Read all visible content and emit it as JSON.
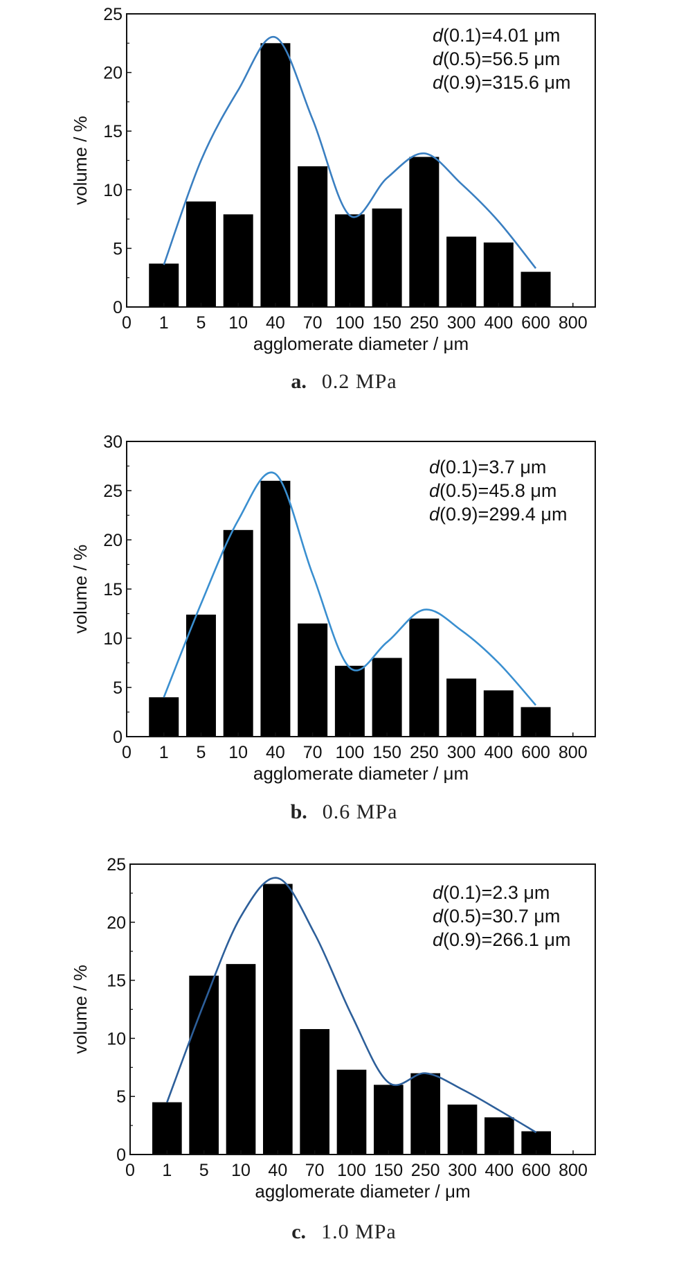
{
  "chart_data": [
    {
      "type": "bar",
      "panel_letter": "a.",
      "caption": "0.2 MPa",
      "xlabel": "agglomerate diameter / μm",
      "ylabel": "volume / %",
      "x_tick_labels": [
        "0",
        "1",
        "5",
        "10",
        "40",
        "70",
        "100",
        "150",
        "250",
        "300",
        "400",
        "600",
        "800"
      ],
      "categories": [
        "1",
        "5",
        "10",
        "40",
        "70",
        "100",
        "150",
        "250",
        "300",
        "400",
        "600"
      ],
      "values": [
        3.7,
        9.0,
        7.9,
        22.5,
        12.0,
        7.9,
        8.4,
        12.8,
        6.0,
        5.5,
        3.0
      ],
      "fit_curve": [
        3.6,
        12.5,
        18.5,
        23.0,
        16.0,
        7.8,
        11.0,
        13.1,
        10.5,
        7.3,
        3.3
      ],
      "ylim": [
        0,
        25
      ],
      "y_ticks": [
        "0",
        "5",
        "10",
        "15",
        "20",
        "25"
      ],
      "annotations": [
        {
          "prefix": "d",
          "text": "(0.1)=4.01 μm"
        },
        {
          "prefix": "d",
          "text": "(0.5)=56.5 μm"
        },
        {
          "prefix": "d",
          "text": "(0.9)=315.6 μm"
        }
      ],
      "bar_color": "#000000",
      "curve_color": "#3a7fc1",
      "grid": false
    },
    {
      "type": "bar",
      "panel_letter": "b.",
      "caption": "0.6 MPa",
      "xlabel": "agglomerate diameter / μm",
      "ylabel": "volume / %",
      "x_tick_labels": [
        "0",
        "1",
        "5",
        "10",
        "40",
        "70",
        "100",
        "150",
        "250",
        "300",
        "400",
        "600",
        "800"
      ],
      "categories": [
        "1",
        "5",
        "10",
        "40",
        "70",
        "100",
        "150",
        "250",
        "300",
        "400",
        "600"
      ],
      "values": [
        4.0,
        12.4,
        21.0,
        26.0,
        11.5,
        7.2,
        8.0,
        12.0,
        5.9,
        4.7,
        3.0
      ],
      "fit_curve": [
        4.0,
        13.5,
        22.0,
        26.7,
        16.5,
        7.0,
        9.6,
        12.9,
        10.8,
        7.5,
        3.2
      ],
      "ylim": [
        0,
        30
      ],
      "y_ticks": [
        "0",
        "5",
        "10",
        "15",
        "20",
        "25",
        "30"
      ],
      "annotations": [
        {
          "prefix": "d",
          "text": "(0.1)=3.7 μm"
        },
        {
          "prefix": "d",
          "text": "(0.5)=45.8 μm"
        },
        {
          "prefix": "d",
          "text": "(0.9)=299.4 μm"
        }
      ],
      "bar_color": "#000000",
      "curve_color": "#3a8fd0",
      "grid": false
    },
    {
      "type": "bar",
      "panel_letter": "c.",
      "caption": "1.0 MPa",
      "xlabel": "agglomerate diameter / μm",
      "ylabel": "volume / %",
      "x_tick_labels": [
        "0",
        "1",
        "5",
        "10",
        "40",
        "70",
        "100",
        "150",
        "250",
        "300",
        "400",
        "600",
        "800"
      ],
      "categories": [
        "1",
        "5",
        "10",
        "40",
        "70",
        "100",
        "150",
        "250",
        "300",
        "400",
        "600"
      ],
      "values": [
        4.5,
        15.4,
        16.4,
        23.3,
        10.8,
        7.3,
        6.0,
        7.0,
        4.3,
        3.2,
        2.0
      ],
      "fit_curve": [
        4.5,
        13.0,
        20.5,
        23.8,
        19.0,
        12.0,
        6.2,
        7.0,
        5.6,
        3.8,
        1.9
      ],
      "ylim": [
        0,
        25
      ],
      "y_ticks": [
        "0",
        "5",
        "10",
        "15",
        "20",
        "25"
      ],
      "annotations": [
        {
          "prefix": "d",
          "text": "(0.1)=2.3 μm"
        },
        {
          "prefix": "d",
          "text": "(0.5)=30.7 μm"
        },
        {
          "prefix": "d",
          "text": "(0.9)=266.1 μm"
        }
      ],
      "bar_color": "#000000",
      "curve_color": "#2d5f9a",
      "grid": false
    }
  ]
}
